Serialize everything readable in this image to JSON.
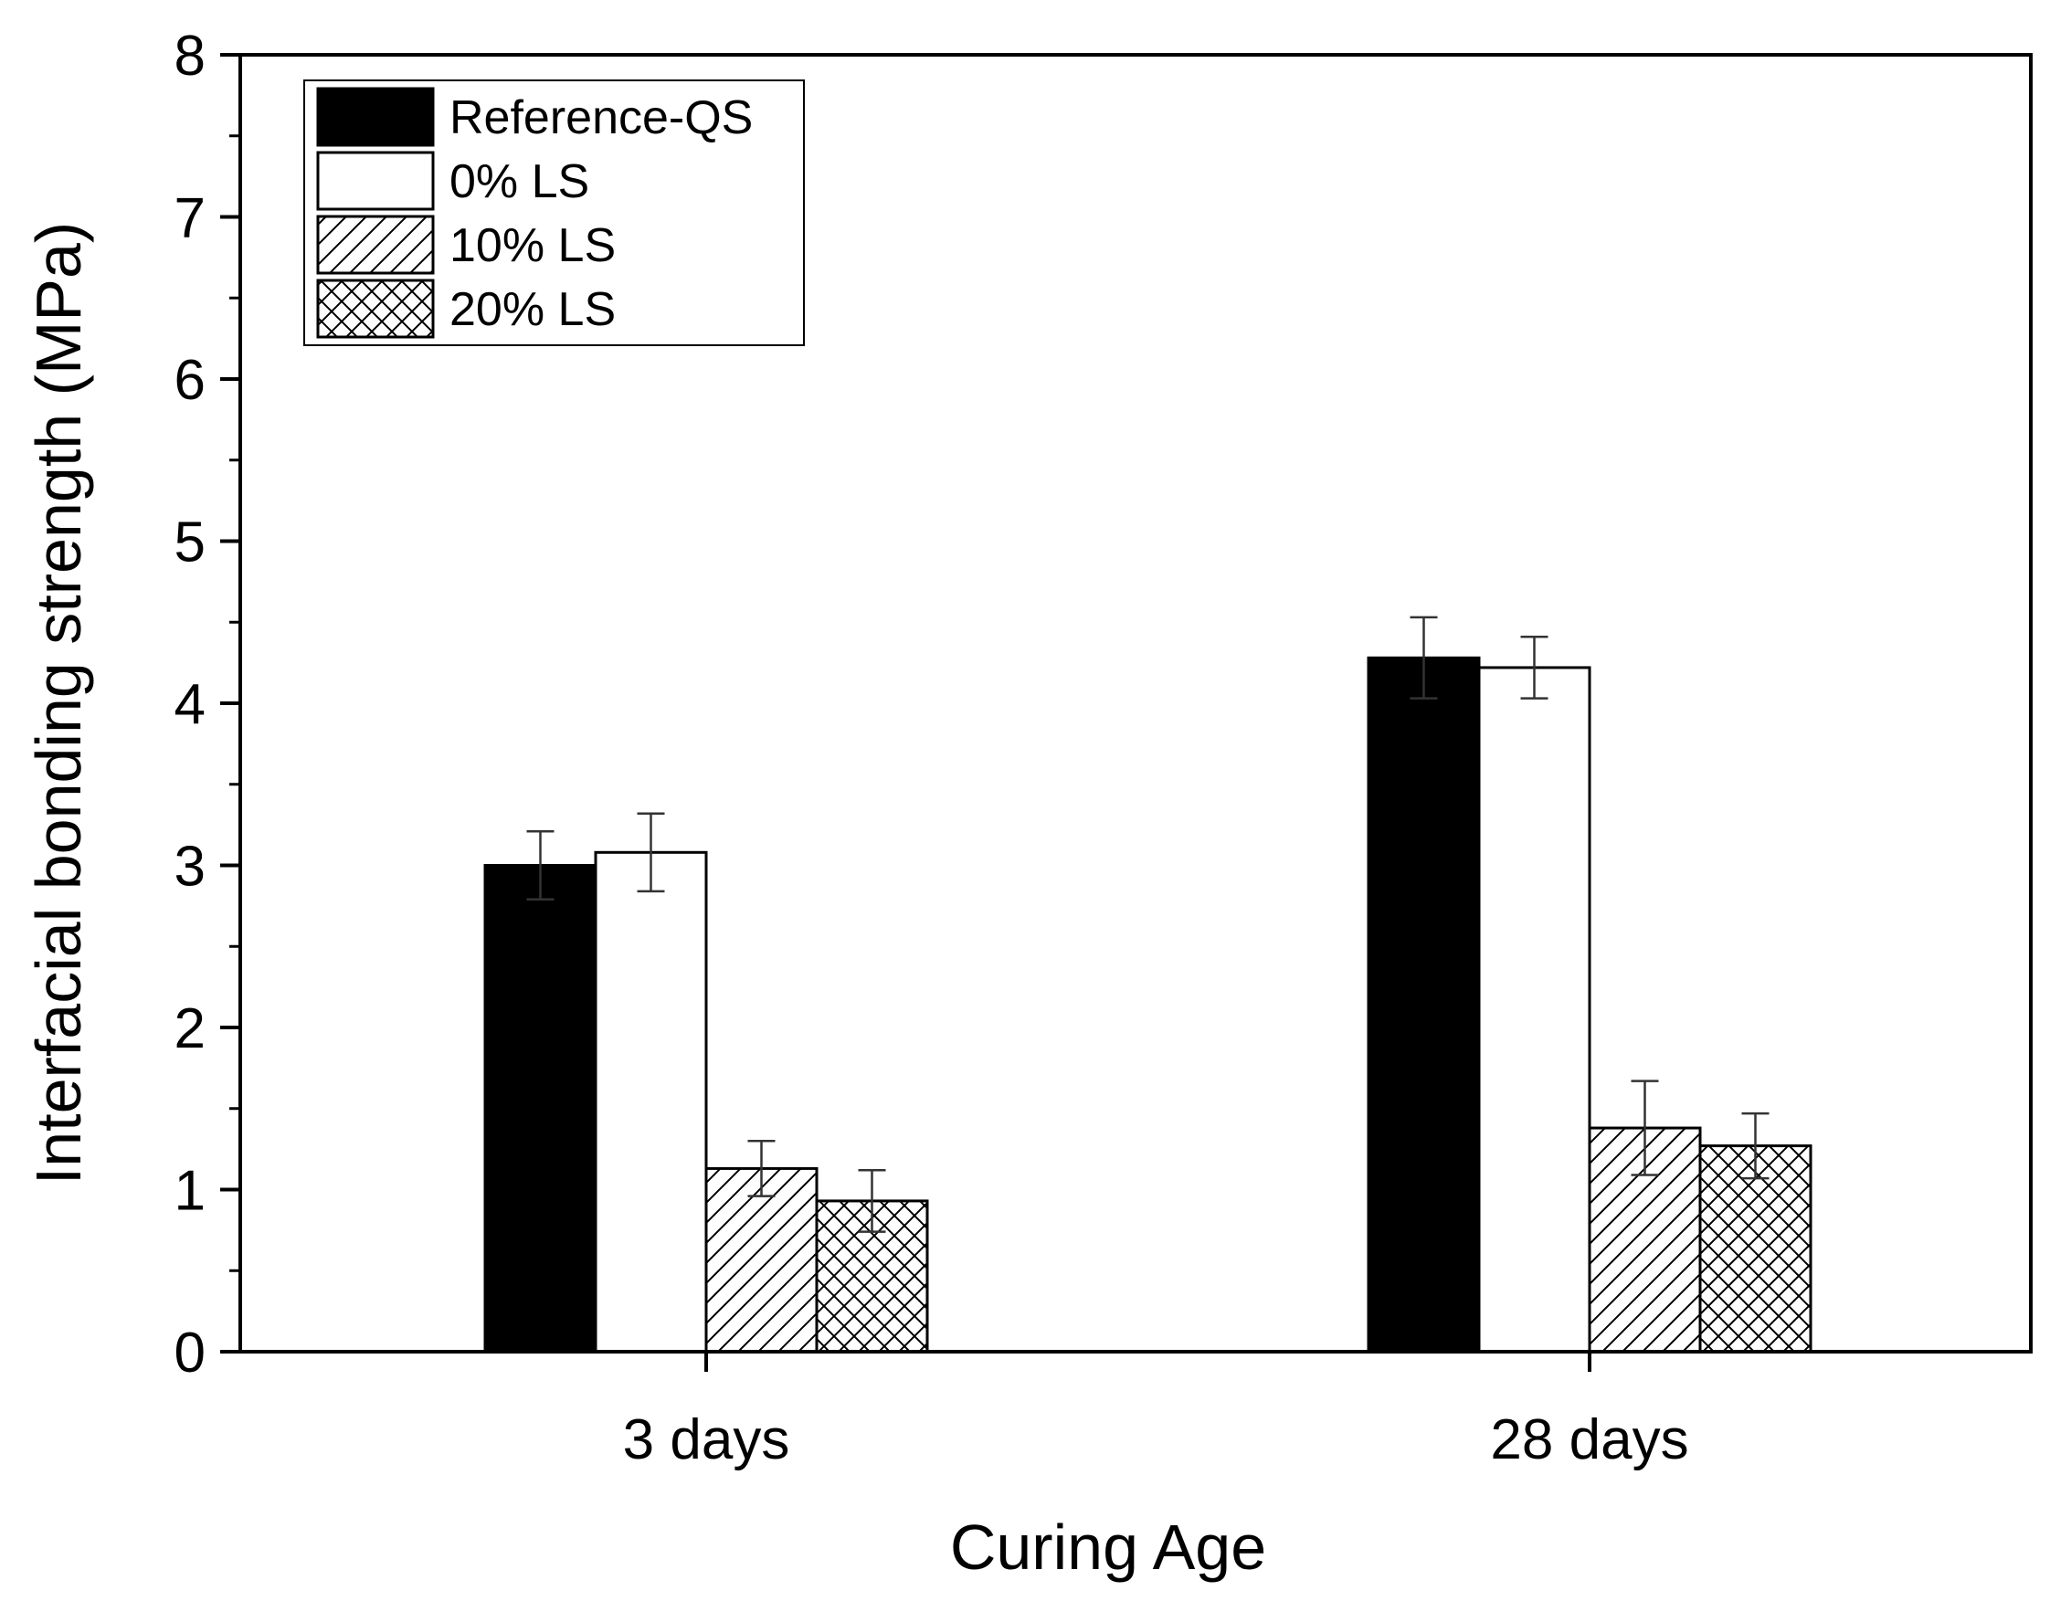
{
  "chart_data": {
    "type": "bar",
    "title": "",
    "xlabel": "Curing Age",
    "ylabel": "Interfacial bonding strength (MPa)",
    "categories": [
      "3 days",
      "28 days"
    ],
    "ylim": [
      0,
      8
    ],
    "yticks": [
      "0",
      "1",
      "2",
      "3",
      "4",
      "5",
      "6",
      "7",
      "8"
    ],
    "grid": false,
    "legend_position": "top-left",
    "series": [
      {
        "name": "Reference-QS",
        "fill": "solid",
        "values": [
          3.0,
          4.28
        ],
        "errors": [
          0.21,
          0.25
        ]
      },
      {
        "name": "0% LS",
        "fill": "empty",
        "values": [
          3.08,
          4.22
        ],
        "errors": [
          0.24,
          0.19
        ]
      },
      {
        "name": "10% LS",
        "fill": "diagonal-hatch",
        "values": [
          1.13,
          1.38
        ],
        "errors": [
          0.17,
          0.29
        ]
      },
      {
        "name": "20% LS",
        "fill": "cross-hatch",
        "values": [
          0.93,
          1.27
        ],
        "errors": [
          0.19,
          0.2
        ]
      }
    ],
    "colors": {
      "line": "#000000",
      "background": "#ffffff",
      "errorbar": "#333333"
    }
  }
}
